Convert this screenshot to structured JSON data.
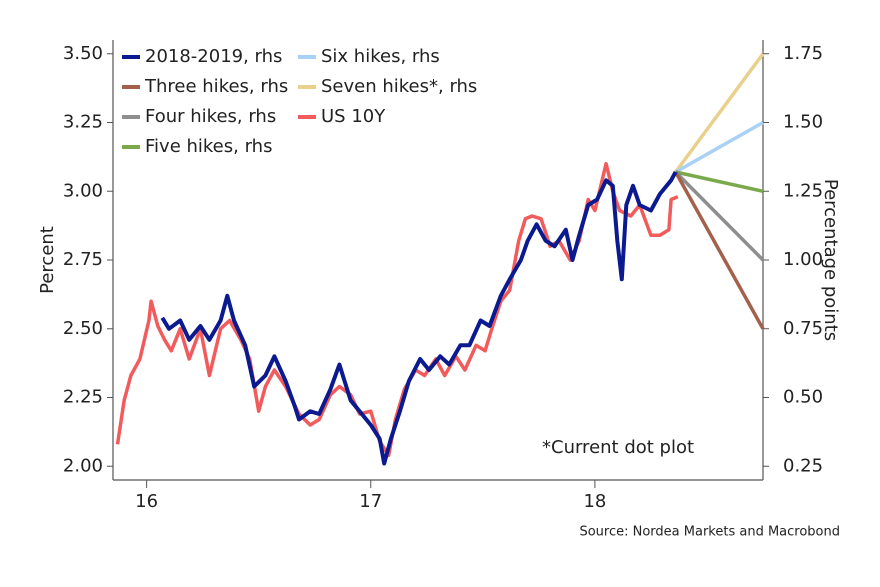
{
  "chart_data": {
    "type": "line",
    "y_label": "Percent",
    "y2_label": "Percentage points",
    "annotation": "*Current dot plot",
    "source": "Source: Nordea Markets and Macrobond",
    "xlim": [
      2015.85,
      2018.75
    ],
    "xticks": [
      {
        "value": 2016,
        "label": "16"
      },
      {
        "value": 2017,
        "label": "17"
      },
      {
        "value": 2018,
        "label": "18"
      }
    ],
    "ylim": [
      1.95,
      3.55
    ],
    "yticks": [
      {
        "value": 2.0,
        "label": "2.00"
      },
      2.25,
      {
        "value": 2.5,
        "label": "2.50"
      },
      2.75,
      {
        "value": 3.0,
        "label": "3.00"
      },
      3.25,
      {
        "value": 3.5,
        "label": "3.50"
      }
    ],
    "y2lim": [
      0.2,
      1.8
    ],
    "y2ticks": [
      0.25,
      {
        "value": 0.5,
        "label": "0.50"
      },
      0.75,
      {
        "value": 1.0,
        "label": "1.00"
      },
      1.25,
      {
        "value": 1.5,
        "label": "1.50"
      },
      1.75
    ],
    "series": [
      {
        "name": "2018-2019, rhs",
        "color": "#0b1a8f",
        "axis": "y2",
        "x": [
          2016.07,
          2016.1,
          2016.15,
          2016.19,
          2016.24,
          2016.28,
          2016.33,
          2016.36,
          2016.39,
          2016.44,
          2016.48,
          2016.53,
          2016.57,
          2016.62,
          2016.66,
          2016.68,
          2016.73,
          2016.77,
          2016.82,
          2016.86,
          2016.91,
          2016.95,
          2017.0,
          2017.04,
          2017.06,
          2017.09,
          2017.13,
          2017.17,
          2017.22,
          2017.26,
          2017.31,
          2017.35,
          2017.4,
          2017.44,
          2017.49,
          2017.53,
          2017.58,
          2017.62,
          2017.67,
          2017.7,
          2017.74,
          2017.78,
          2017.82,
          2017.87,
          2017.9,
          2017.93,
          2017.97,
          2018.01,
          2018.05,
          2018.08,
          2018.1,
          2018.12,
          2018.14,
          2018.17,
          2018.2,
          2018.25,
          2018.29,
          2018.34,
          2018.36
        ],
        "values": [
          0.79,
          0.75,
          0.78,
          0.71,
          0.76,
          0.71,
          0.78,
          0.87,
          0.78,
          0.69,
          0.54,
          0.58,
          0.65,
          0.56,
          0.47,
          0.42,
          0.45,
          0.44,
          0.53,
          0.62,
          0.49,
          0.45,
          0.4,
          0.35,
          0.26,
          0.35,
          0.45,
          0.56,
          0.64,
          0.6,
          0.65,
          0.62,
          0.69,
          0.69,
          0.78,
          0.76,
          0.87,
          0.93,
          1.0,
          1.07,
          1.13,
          1.07,
          1.05,
          1.11,
          1.0,
          1.09,
          1.2,
          1.22,
          1.29,
          1.27,
          1.07,
          0.93,
          1.2,
          1.27,
          1.2,
          1.18,
          1.24,
          1.29,
          1.32
        ]
      },
      {
        "name": "Three hikes, rhs",
        "color": "#a3614b",
        "axis": "y2",
        "x": [
          2018.36,
          2018.75
        ],
        "values": [
          1.32,
          0.75
        ]
      },
      {
        "name": "Four hikes, rhs",
        "color": "#8e8e8e",
        "axis": "y2",
        "x": [
          2018.36,
          2018.75
        ],
        "values": [
          1.32,
          1.0
        ]
      },
      {
        "name": "Five hikes, rhs",
        "color": "#7aa94b",
        "axis": "y2",
        "x": [
          2018.36,
          2018.75
        ],
        "values": [
          1.32,
          1.25
        ]
      },
      {
        "name": "Six hikes, rhs",
        "color": "#a9d0f5",
        "axis": "y2",
        "x": [
          2018.36,
          2018.75
        ],
        "values": [
          1.32,
          1.5
        ]
      },
      {
        "name": "Seven hikes*, rhs",
        "color": "#e9d08c",
        "axis": "y2",
        "x": [
          2018.36,
          2018.75
        ],
        "values": [
          1.32,
          1.75
        ]
      },
      {
        "name": "US 10Y",
        "color": "#f25b5b",
        "x": [
          2015.87,
          2015.9,
          2015.93,
          2015.97,
          2016.01,
          2016.02,
          2016.05,
          2016.08,
          2016.11,
          2016.15,
          2016.19,
          2016.24,
          2016.28,
          2016.33,
          2016.37,
          2016.42,
          2016.46,
          2016.5,
          2016.53,
          2016.57,
          2016.62,
          2016.65,
          2016.68,
          2016.73,
          2016.77,
          2016.82,
          2016.86,
          2016.91,
          2016.95,
          2017.0,
          2017.04,
          2017.08,
          2017.11,
          2017.15,
          2017.2,
          2017.24,
          2017.29,
          2017.33,
          2017.38,
          2017.42,
          2017.47,
          2017.51,
          2017.54,
          2017.58,
          2017.62,
          2017.66,
          2017.69,
          2017.72,
          2017.76,
          2017.8,
          2017.84,
          2017.89,
          2017.93,
          2017.97,
          2018.0,
          2018.05,
          2018.08,
          2018.11,
          2018.16,
          2018.2,
          2018.25,
          2018.29,
          2018.33,
          2018.34,
          2018.37
        ],
        "values": [
          2.08,
          2.24,
          2.33,
          2.39,
          2.53,
          2.6,
          2.51,
          2.46,
          2.42,
          2.5,
          2.39,
          2.5,
          2.33,
          2.5,
          2.53,
          2.46,
          2.39,
          2.2,
          2.29,
          2.35,
          2.29,
          2.24,
          2.19,
          2.15,
          2.17,
          2.26,
          2.29,
          2.26,
          2.19,
          2.2,
          2.09,
          2.04,
          2.17,
          2.28,
          2.35,
          2.33,
          2.39,
          2.33,
          2.4,
          2.35,
          2.44,
          2.42,
          2.5,
          2.6,
          2.64,
          2.82,
          2.9,
          2.91,
          2.9,
          2.8,
          2.82,
          2.75,
          2.82,
          2.97,
          2.93,
          3.1,
          3.0,
          2.93,
          2.91,
          2.95,
          2.84,
          2.84,
          2.86,
          2.97,
          2.98
        ]
      }
    ],
    "legend_order": [
      0,
      1,
      2,
      3,
      4,
      5,
      6
    ]
  }
}
